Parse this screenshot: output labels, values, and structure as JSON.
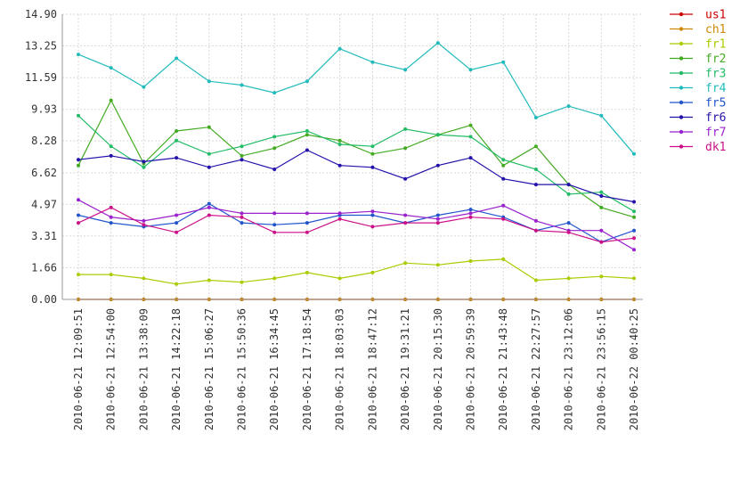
{
  "chart_data": {
    "type": "line",
    "ylim": [
      0,
      14.9
    ],
    "yticks": [
      "0.00",
      "1.66",
      "3.31",
      "4.97",
      "6.62",
      "8.28",
      "9.93",
      "11.59",
      "13.25",
      "14.90"
    ],
    "x": [
      "2010-06-21 12:09:51",
      "2010-06-21 12:54:00",
      "2010-06-21 13:38:09",
      "2010-06-21 14:22:18",
      "2010-06-21 15:06:27",
      "2010-06-21 15:50:36",
      "2010-06-21 16:34:45",
      "2010-06-21 17:18:54",
      "2010-06-21 18:03:03",
      "2010-06-21 18:47:12",
      "2010-06-21 19:31:21",
      "2010-06-21 20:15:30",
      "2010-06-21 20:59:39",
      "2010-06-21 21:43:48",
      "2010-06-21 22:27:57",
      "2010-06-21 23:12:06",
      "2010-06-21 23:56:15",
      "2010-06-22 00:40:25"
    ],
    "series": [
      {
        "name": "us1",
        "color": "#cc0000",
        "values": [
          0,
          0,
          0,
          0,
          0,
          0,
          0,
          0,
          0,
          0,
          0,
          0,
          0,
          0,
          0,
          0,
          0,
          0
        ]
      },
      {
        "name": "ch1",
        "color": "#cc8800",
        "values": [
          0,
          0,
          0,
          0,
          0,
          0,
          0,
          0,
          0,
          0,
          0,
          0,
          0,
          0,
          0,
          0,
          0,
          0
        ]
      },
      {
        "name": "fr1",
        "color": "#aacc00",
        "values": [
          1.3,
          1.3,
          1.1,
          0.8,
          1.0,
          0.9,
          1.1,
          1.4,
          1.1,
          1.4,
          1.9,
          1.8,
          2.0,
          2.1,
          1.0,
          1.1,
          1.2,
          1.1
        ]
      },
      {
        "name": "fr2",
        "color": "#44aa22",
        "values": [
          7.0,
          10.4,
          7.1,
          8.8,
          9.0,
          7.5,
          7.9,
          8.6,
          8.3,
          7.6,
          7.9,
          8.6,
          9.1,
          7.0,
          8.0,
          6.0,
          4.8,
          4.3
        ]
      },
      {
        "name": "fr3",
        "color": "#22bb66",
        "values": [
          9.6,
          8.0,
          6.9,
          8.3,
          7.6,
          8.0,
          8.5,
          8.8,
          8.1,
          8.0,
          8.9,
          8.6,
          8.5,
          7.3,
          6.8,
          5.5,
          5.6,
          4.6
        ]
      },
      {
        "name": "fr4",
        "color": "#22bbbb",
        "values": [
          12.8,
          12.1,
          11.1,
          12.6,
          11.4,
          11.2,
          10.8,
          11.4,
          13.1,
          12.4,
          12.0,
          13.4,
          12.0,
          12.4,
          9.5,
          10.1,
          9.6,
          7.6
        ]
      },
      {
        "name": "fr5",
        "color": "#2255cc",
        "values": [
          4.4,
          4.0,
          3.8,
          4.0,
          5.0,
          4.0,
          3.9,
          4.0,
          4.4,
          4.4,
          4.0,
          4.4,
          4.7,
          4.3,
          3.6,
          4.0,
          3.0,
          3.6
        ]
      },
      {
        "name": "fr6",
        "color": "#2211aa",
        "values": [
          7.3,
          7.5,
          7.2,
          7.4,
          6.9,
          7.3,
          6.8,
          7.8,
          7.0,
          6.9,
          6.3,
          7.0,
          7.4,
          6.3,
          6.0,
          6.0,
          5.4,
          5.1
        ]
      },
      {
        "name": "fr7",
        "color": "#9922cc",
        "values": [
          5.2,
          4.3,
          4.1,
          4.4,
          4.8,
          4.5,
          4.5,
          4.5,
          4.5,
          4.6,
          4.4,
          4.2,
          4.5,
          4.9,
          4.1,
          3.6,
          3.6,
          2.6
        ]
      },
      {
        "name": "dk1",
        "color": "#cc1188",
        "values": [
          4.0,
          4.8,
          3.9,
          3.5,
          4.4,
          4.3,
          3.5,
          3.5,
          4.2,
          3.8,
          4.0,
          4.0,
          4.3,
          4.2,
          3.6,
          3.5,
          3.0,
          3.2
        ]
      }
    ]
  }
}
